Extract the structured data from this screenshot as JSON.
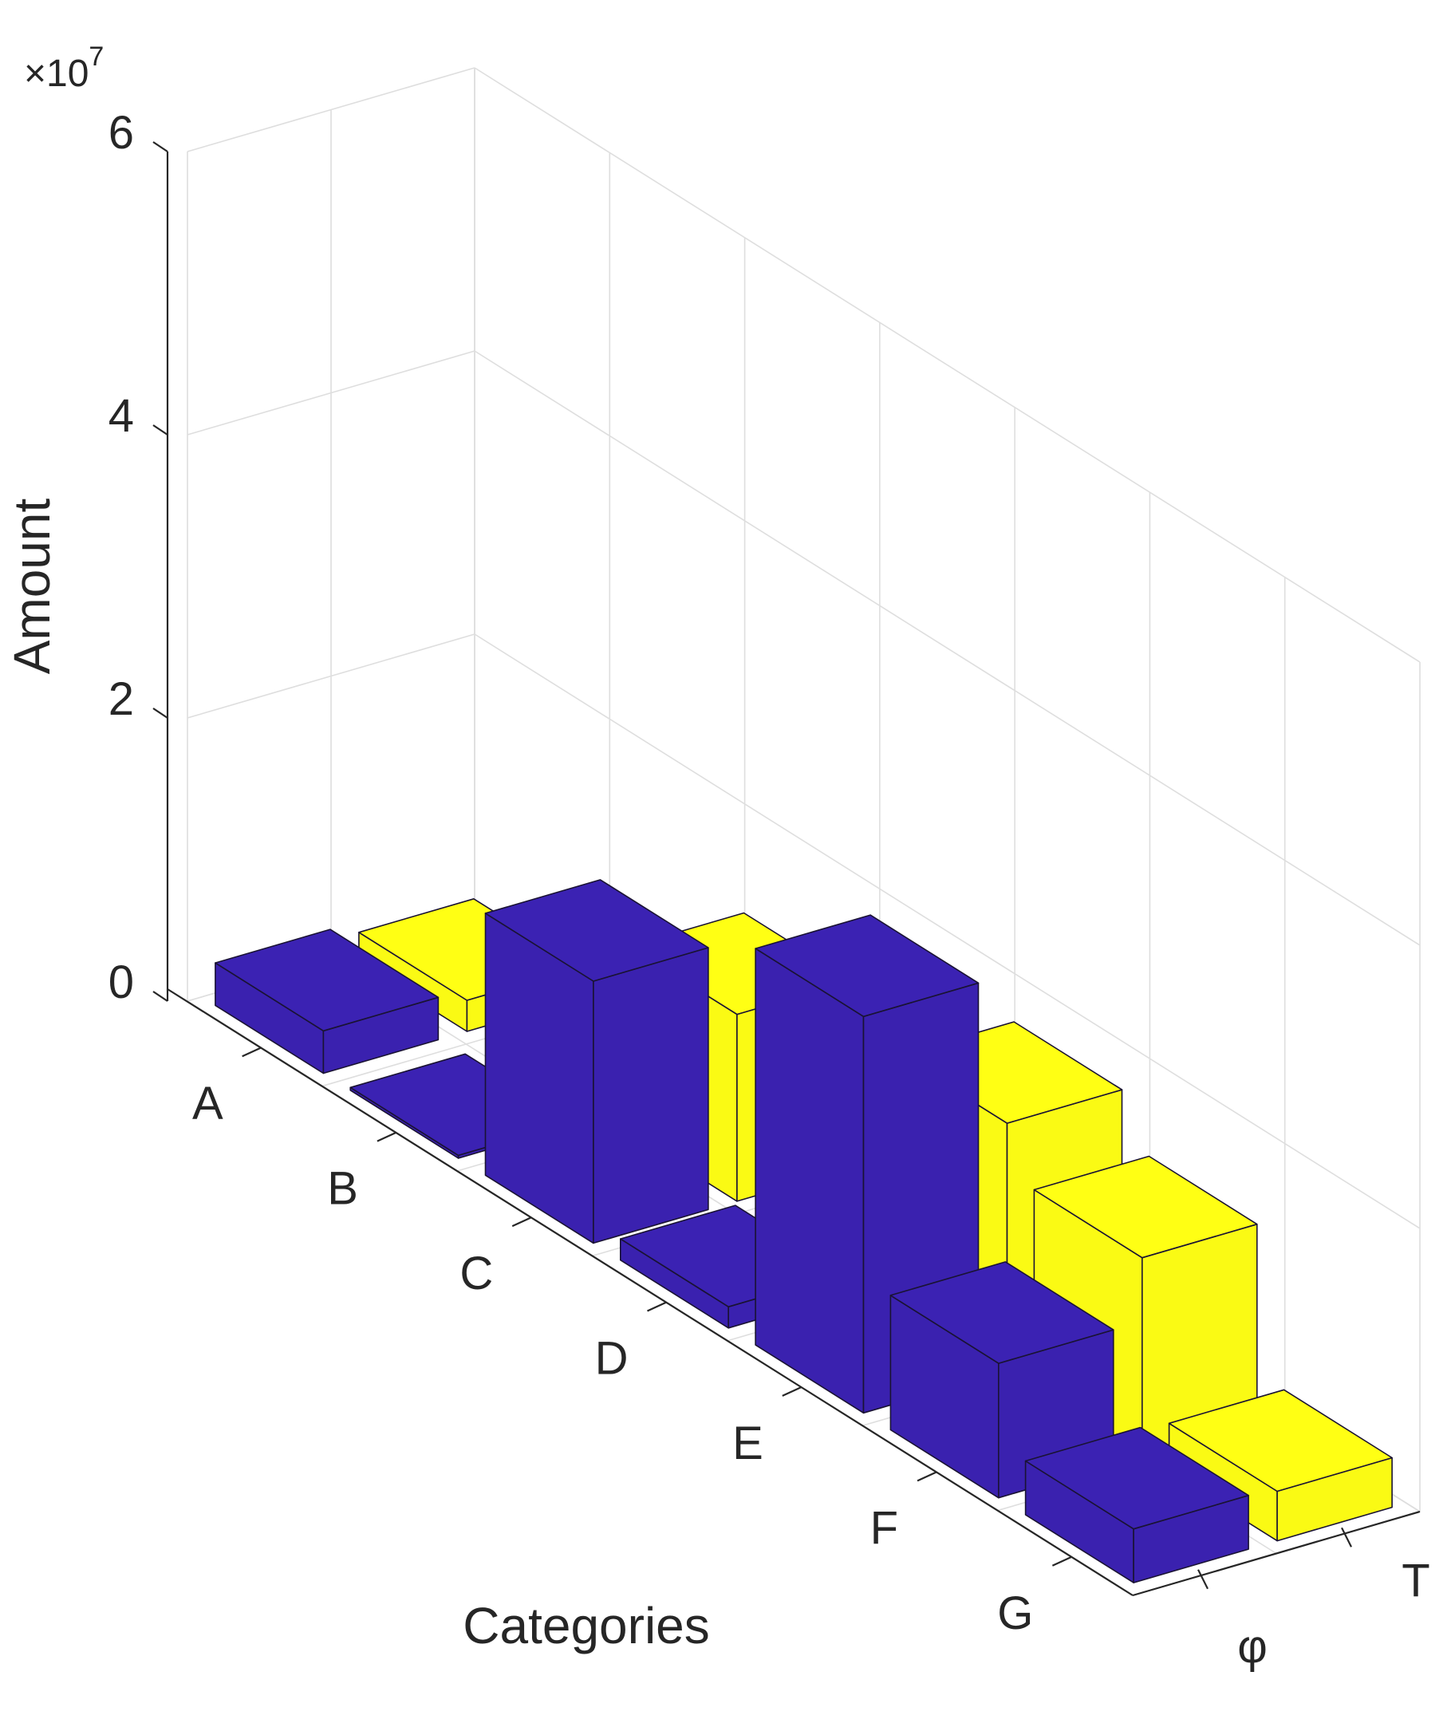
{
  "chart_data": {
    "type": "bar",
    "view": "3d",
    "categories": [
      "A",
      "B",
      "C",
      "D",
      "E",
      "F",
      "G"
    ],
    "depth_categories": [
      "φ",
      "T"
    ],
    "series": [
      {
        "depth": "φ",
        "values": [
          3000000,
          200000,
          18500000,
          1500000,
          28000000,
          9500000,
          3800000
        ]
      },
      {
        "depth": "T",
        "values": [
          2200000,
          300000,
          13200000,
          10000000,
          17500000,
          14000000,
          3500000
        ]
      }
    ],
    "colors": {
      "φ": "#3b22b3",
      "T": "#ffff14"
    },
    "xlabel": "Categories",
    "ylabel": "Amount",
    "scale_label": "×10",
    "scale_exponent": "7",
    "zlim": [
      0,
      60000000
    ],
    "zticks": [
      0,
      20000000,
      40000000,
      60000000
    ],
    "ztick_labels": [
      "0",
      "2",
      "4",
      "6"
    ],
    "grid": true
  }
}
